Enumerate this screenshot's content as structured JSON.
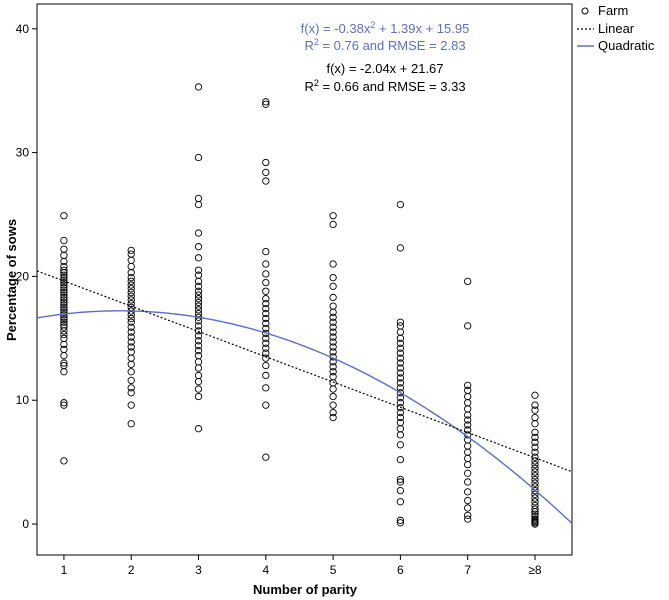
{
  "chart_data": {
    "type": "scatter",
    "xlabel": "Number of parity",
    "ylabel": "Percentage of sows",
    "categories": [
      "1",
      "2",
      "3",
      "4",
      "5",
      "6",
      "7",
      "≥8"
    ],
    "x_range": [
      0.6,
      8.55
    ],
    "ylim": [
      -2.5,
      42
    ],
    "yticks": [
      0,
      10,
      20,
      30,
      40
    ],
    "legend": {
      "position": "top-right",
      "items": [
        {
          "label": "Farm",
          "kind": "marker"
        },
        {
          "label": "Linear",
          "kind": "dotted-line"
        },
        {
          "label": "Quadratic",
          "kind": "solid-line"
        }
      ]
    },
    "colors": {
      "quadratic": "#5b6fc8",
      "linear": "#000000",
      "points": "#000000"
    },
    "series": [
      {
        "name": "Farm",
        "points": [
          {
            "parity": 1,
            "values": [
              5.1,
              9.6,
              9.8,
              12.3,
              12.8,
              13.0,
              13.6,
              14.1,
              14.5,
              15.0,
              15.3,
              15.6,
              15.9,
              16.1,
              16.3,
              16.5,
              16.7,
              16.9,
              17.1,
              17.3,
              17.5,
              17.7,
              17.9,
              18.1,
              18.3,
              18.5,
              18.7,
              18.9,
              19.1,
              19.3,
              19.5,
              19.7,
              19.9,
              20.1,
              20.3,
              20.5,
              20.8,
              21.2,
              21.7,
              22.2,
              22.9,
              24.9
            ]
          },
          {
            "parity": 2,
            "values": [
              8.1,
              9.6,
              10.6,
              11.0,
              11.6,
              12.3,
              12.9,
              13.4,
              13.9,
              14.3,
              14.7,
              15.1,
              15.5,
              15.9,
              16.3,
              16.6,
              16.9,
              17.2,
              17.5,
              17.8,
              18.1,
              18.4,
              18.7,
              19.0,
              19.3,
              19.6,
              19.9,
              20.3,
              20.8,
              21.3,
              21.8,
              22.1
            ]
          },
          {
            "parity": 3,
            "values": [
              7.7,
              10.3,
              10.9,
              11.5,
              12.0,
              12.6,
              13.1,
              13.6,
              14.0,
              14.4,
              14.8,
              15.2,
              15.6,
              16.0,
              16.4,
              16.7,
              17.0,
              17.3,
              17.6,
              17.9,
              18.2,
              18.5,
              18.8,
              19.2,
              19.6,
              20.1,
              20.5,
              21.5,
              22.4,
              23.5,
              25.8,
              26.3,
              29.6,
              35.3
            ]
          },
          {
            "parity": 4,
            "values": [
              5.4,
              9.6,
              11.0,
              12.0,
              12.8,
              13.4,
              13.8,
              14.2,
              14.6,
              15.0,
              15.4,
              15.8,
              16.2,
              16.6,
              17.0,
              17.4,
              17.8,
              18.2,
              18.8,
              19.5,
              20.2,
              21.0,
              22.0,
              27.7,
              28.4,
              29.2,
              33.9,
              34.1
            ]
          },
          {
            "parity": 5,
            "values": [
              8.6,
              9.0,
              9.6,
              10.3,
              10.9,
              11.4,
              11.9,
              12.3,
              12.7,
              13.1,
              13.5,
              13.9,
              14.3,
              14.7,
              15.1,
              15.5,
              15.9,
              16.3,
              16.7,
              17.1,
              17.6,
              18.3,
              19.2,
              19.9,
              21.0,
              24.2,
              24.9
            ]
          },
          {
            "parity": 6,
            "values": [
              0.1,
              0.3,
              1.8,
              2.7,
              3.4,
              3.6,
              5.2,
              6.4,
              7.2,
              7.7,
              8.2,
              8.6,
              9.0,
              9.4,
              9.8,
              10.2,
              10.6,
              11.0,
              11.4,
              11.8,
              12.2,
              12.6,
              13.0,
              13.4,
              13.8,
              14.2,
              14.6,
              15.0,
              15.5,
              16.0,
              16.3,
              22.3,
              25.8
            ]
          },
          {
            "parity": 7,
            "values": [
              0.4,
              0.7,
              1.3,
              1.9,
              2.6,
              3.4,
              4.1,
              4.8,
              5.3,
              5.8,
              6.3,
              6.8,
              7.2,
              7.6,
              8.0,
              8.4,
              8.8,
              9.3,
              9.8,
              10.3,
              10.8,
              11.2,
              16.0,
              19.6
            ]
          },
          {
            "parity": 8,
            "values": [
              0.0,
              0.1,
              0.2,
              0.3,
              0.4,
              0.6,
              0.8,
              1.0,
              1.2,
              1.5,
              1.8,
              2.1,
              2.4,
              2.7,
              3.0,
              3.3,
              3.6,
              3.9,
              4.2,
              4.5,
              4.8,
              5.1,
              5.4,
              5.8,
              6.2,
              6.6,
              7.0,
              7.4,
              8.1,
              8.6,
              9.2,
              9.6,
              10.4
            ]
          }
        ]
      },
      {
        "name": "Linear",
        "equation": {
          "a": -2.04,
          "b": 21.67
        },
        "label_line1": "f(x) = -2.04x + 21.67",
        "label_line2_r2": "R",
        "label_line2_sup": "2",
        "label_line2_rest": " = 0.66 and RMSE = 3.33"
      },
      {
        "name": "Quadratic",
        "equation": {
          "a": -0.38,
          "b": 1.39,
          "c": 15.95
        },
        "label_line1_a": "f(x) = -0.38x",
        "label_line1_sup": "2",
        "label_line1_b": " + 1.39x + 15.95",
        "label_line2_r2": "R",
        "label_line2_sup": "2",
        "label_line2_rest": " = 0.76 and RMSE = 2.83"
      }
    ]
  }
}
